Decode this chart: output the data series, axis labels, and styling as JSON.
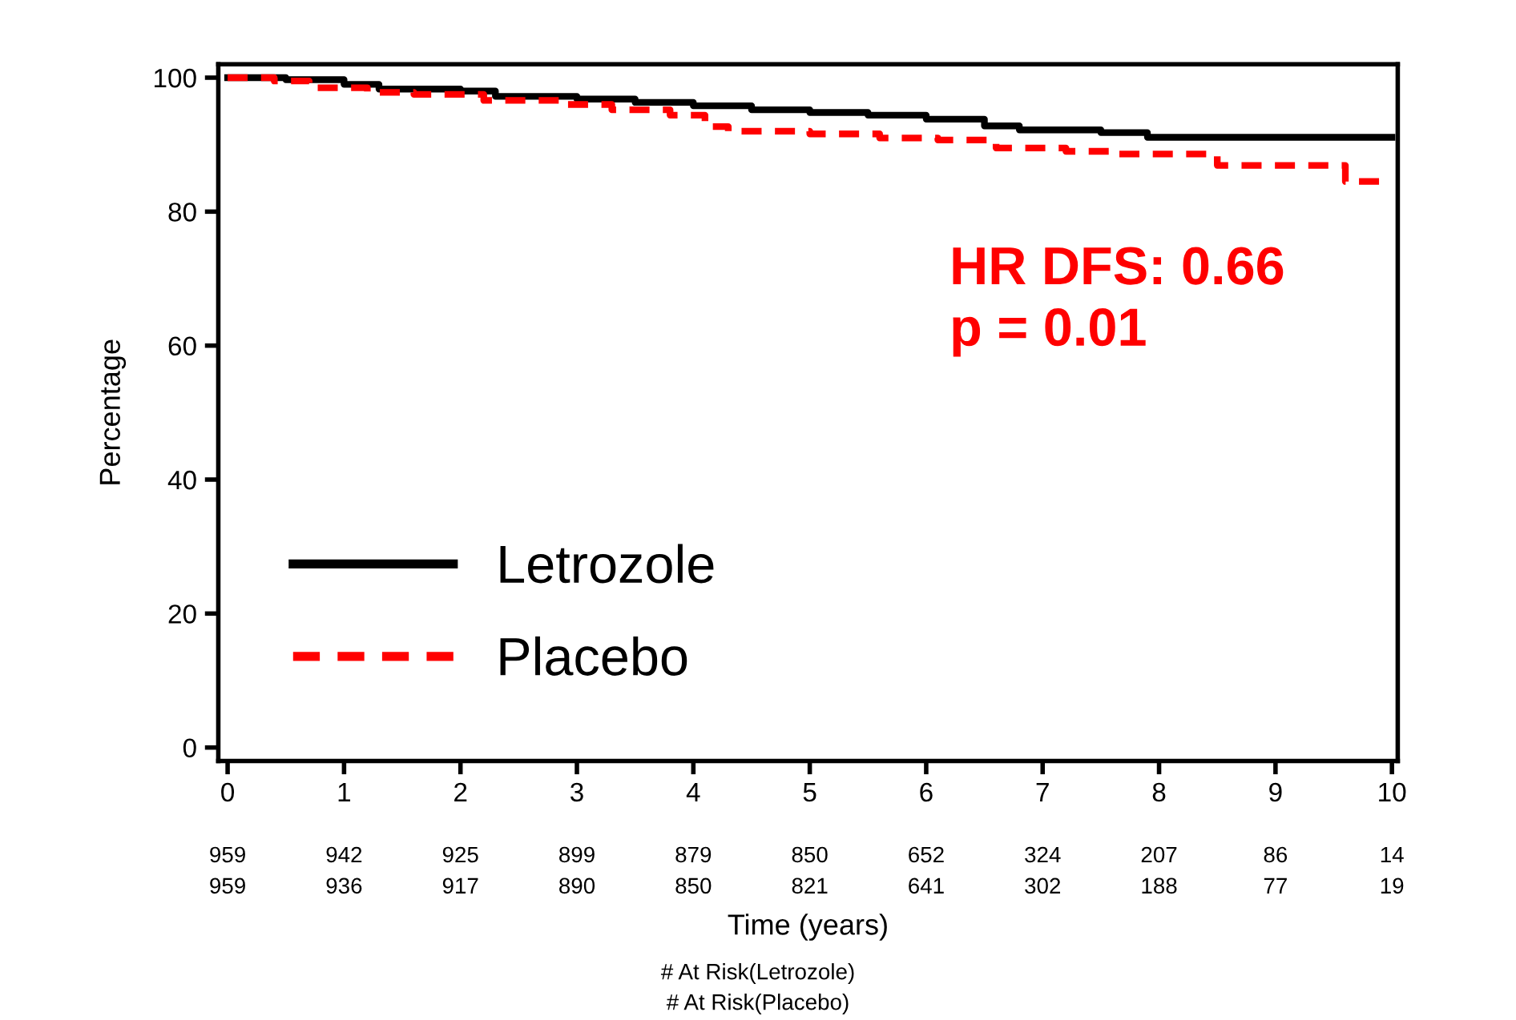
{
  "chart_data": {
    "type": "step",
    "ylabel": "Percentage",
    "xlabel": "Time (years)",
    "xlim": [
      -0.08,
      10.05
    ],
    "ylim": [
      -2,
      102
    ],
    "yticks": [
      0,
      20,
      40,
      60,
      80,
      100
    ],
    "xticks": [
      0,
      1,
      2,
      3,
      4,
      5,
      6,
      7,
      8,
      9,
      10
    ],
    "series": [
      {
        "name": "Letrozole",
        "color": "#000000",
        "line_style": "solid",
        "x": [
          0,
          0.5,
          1.0,
          1.3,
          2.0,
          2.3,
          3.0,
          3.5,
          4.0,
          4.5,
          5.0,
          5.5,
          6.0,
          6.5,
          6.8,
          7.5,
          7.9,
          10.0
        ],
        "values": [
          100,
          99.7,
          99,
          98.3,
          98,
          97.2,
          96.8,
          96.3,
          95.8,
          95.2,
          94.8,
          94.4,
          93.8,
          92.8,
          92.2,
          91.8,
          91.1,
          91.1
        ]
      },
      {
        "name": "Placebo",
        "color": "#ff0000",
        "line_style": "dashed",
        "x": [
          0,
          0.4,
          0.7,
          1.2,
          1.6,
          2.2,
          2.9,
          3.3,
          3.8,
          4.1,
          4.3,
          5.0,
          5.6,
          6.1,
          6.6,
          7.2,
          7.6,
          8.5,
          9.6,
          9.95
        ],
        "values": [
          100,
          99.5,
          98.5,
          97.8,
          97.5,
          96.6,
          96,
          95.2,
          94.4,
          92.7,
          92,
          91.6,
          91,
          90.7,
          89.5,
          89.0,
          88.6,
          86.9,
          84.5,
          84.5
        ]
      }
    ],
    "legend": "bottom left",
    "annotations": [
      "HR DFS: 0.66\np = 0.01",
      "959",
      "942",
      "925",
      "899",
      "879",
      "850",
      "652",
      "324",
      "207",
      "86",
      "14",
      "959",
      "936",
      "917",
      "890",
      "850",
      "821",
      "641",
      "302",
      "188",
      "77",
      "19",
      "# At Risk(Letrozole)",
      "# At Risk(Placebo)"
    ]
  }
}
